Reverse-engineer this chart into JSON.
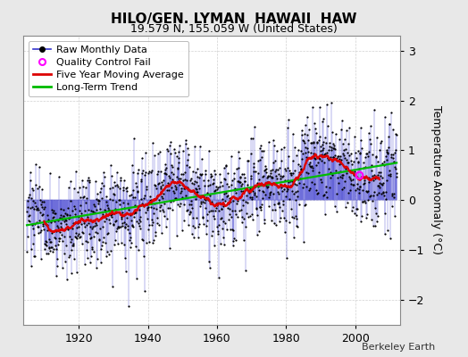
{
  "title": "HILO/GEN. LYMAN  HAWAII  HAW",
  "subtitle": "19.579 N, 155.059 W (United States)",
  "ylabel": "Temperature Anomaly (°C)",
  "attribution": "Berkeley Earth",
  "year_start": 1905,
  "year_end": 2012,
  "ylim": [
    -2.5,
    3.3
  ],
  "yticks": [
    -2,
    -1,
    0,
    1,
    2,
    3
  ],
  "xticks": [
    1920,
    1940,
    1960,
    1980,
    2000
  ],
  "bg_color": "#e8e8e8",
  "plot_bg_color": "#ffffff",
  "raw_line_color": "#3333cc",
  "raw_marker_color": "#000000",
  "ma_color": "#dd0000",
  "trend_color": "#00bb00",
  "qc_color": "#ff00ff",
  "grid_color": "#cccccc",
  "title_fontsize": 11,
  "subtitle_fontsize": 9,
  "legend_fontsize": 8,
  "axis_fontsize": 9
}
